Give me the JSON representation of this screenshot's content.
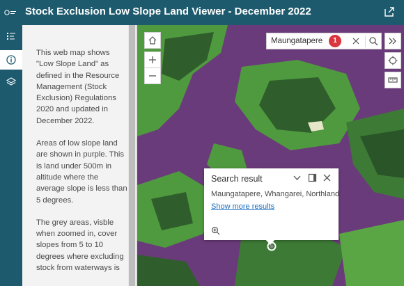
{
  "app": {
    "title": "Stock Exclusion Low Slope Land Viewer - December 2022",
    "header_color": "#1e5a6e"
  },
  "header": {
    "logo_icon": "ministry-logo-icon",
    "share_icon": "share-icon"
  },
  "rail": {
    "items": [
      {
        "name": "legend",
        "icon": "legend-list-icon"
      },
      {
        "name": "about",
        "icon": "info-icon",
        "active": true
      },
      {
        "name": "layers",
        "icon": "layers-icon"
      }
    ]
  },
  "panel": {
    "paragraphs": [
      "This web map shows \"Low Slope Land\" as defined in the Resource Management (Stock Exclusion) Regulations 2020 and updated in December 2022.",
      "Areas of low slope land are shown in purple. This is land under 500m in altitude where the average slope is less than 5 degrees.",
      "The grey areas, visble when zoomed in, cover slopes from 5 to 10 degrees where excluding stock from waterways is"
    ]
  },
  "map": {
    "controls": {
      "home_icon": "home-icon",
      "zoom_in_icon": "plus-icon",
      "zoom_out_icon": "minus-icon",
      "expand_icon": "double-chevron-right-icon",
      "locate_icon": "locate-icon",
      "measure_icon": "ruler-icon"
    },
    "search": {
      "value": "Maungatapere",
      "badge": "1",
      "clear_icon": "close-icon",
      "search_icon": "search-icon"
    },
    "popup": {
      "title": "Search result",
      "address": "Maungatapere, Whangarei, Northland",
      "link": "Show more results",
      "collapse_icon": "chevron-down-icon",
      "dock_icon": "dock-icon",
      "close_icon": "close-icon",
      "zoom_icon": "zoom-to-icon"
    },
    "colors": {
      "low_slope": "#6a3b7a",
      "vegetation": "#4f9a3e",
      "forest": "#2f5e2c"
    }
  }
}
